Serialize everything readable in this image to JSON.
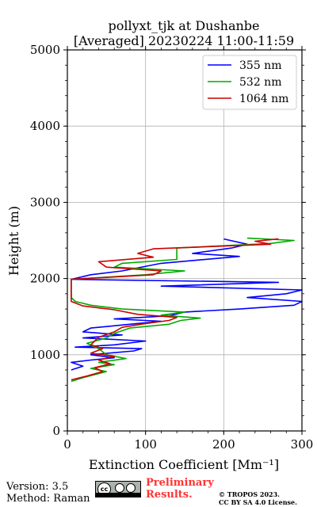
{
  "chart_data": {
    "type": "line",
    "title": "pollyxt_tjk at Dushanbe",
    "subtitle": "[Averaged] 20230224 11:00-11:59",
    "xlabel": "Extinction Coefficient [Mm⁻¹]",
    "ylabel": "Height (m)",
    "xlim": [
      0,
      300
    ],
    "ylim": [
      0,
      5000
    ],
    "xticks": [
      "0",
      "100",
      "200",
      "300"
    ],
    "yticks": [
      "0",
      "1000",
      "2000",
      "3000",
      "4000",
      "5000"
    ],
    "grid": true,
    "legend_position": "top-right",
    "series": [
      {
        "name": "355 nm",
        "color": "#0000ff",
        "points": [
          [
            5,
            800
          ],
          [
            20,
            850
          ],
          [
            5,
            900
          ],
          [
            30,
            930
          ],
          [
            60,
            960
          ],
          [
            30,
            1000
          ],
          [
            85,
            1050
          ],
          [
            95,
            1080
          ],
          [
            10,
            1100
          ],
          [
            60,
            1130
          ],
          [
            100,
            1180
          ],
          [
            20,
            1220
          ],
          [
            70,
            1260
          ],
          [
            20,
            1300
          ],
          [
            30,
            1350
          ],
          [
            80,
            1400
          ],
          [
            120,
            1440
          ],
          [
            60,
            1470
          ],
          [
            130,
            1510
          ],
          [
            150,
            1560
          ],
          [
            220,
            1600
          ],
          [
            290,
            1650
          ],
          [
            300,
            1700
          ],
          [
            230,
            1750
          ],
          [
            280,
            1800
          ],
          [
            300,
            1850
          ],
          [
            120,
            1900
          ],
          [
            270,
            1950
          ],
          [
            5,
            1990
          ],
          [
            30,
            2050
          ],
          [
            70,
            2100
          ],
          [
            120,
            2200
          ],
          [
            220,
            2290
          ],
          [
            160,
            2330
          ],
          [
            210,
            2400
          ],
          [
            230,
            2450
          ],
          [
            200,
            2520
          ]
        ]
      },
      {
        "name": "532 nm",
        "color": "#00aa00",
        "points": [
          [
            5,
            650
          ],
          [
            20,
            700
          ],
          [
            50,
            780
          ],
          [
            30,
            820
          ],
          [
            60,
            870
          ],
          [
            40,
            900
          ],
          [
            75,
            950
          ],
          [
            50,
            1000
          ],
          [
            40,
            1080
          ],
          [
            25,
            1150
          ],
          [
            50,
            1220
          ],
          [
            60,
            1280
          ],
          [
            80,
            1350
          ],
          [
            130,
            1400
          ],
          [
            145,
            1450
          ],
          [
            170,
            1480
          ],
          [
            120,
            1520
          ],
          [
            150,
            1560
          ],
          [
            70,
            1600
          ],
          [
            30,
            1650
          ],
          [
            10,
            1700
          ],
          [
            5,
            1750
          ],
          [
            5,
            1990
          ],
          [
            100,
            2050
          ],
          [
            150,
            2100
          ],
          [
            60,
            2150
          ],
          [
            70,
            2200
          ],
          [
            140,
            2250
          ],
          [
            140,
            2320
          ],
          [
            140,
            2400
          ],
          [
            260,
            2460
          ],
          [
            290,
            2500
          ],
          [
            230,
            2530
          ]
        ]
      },
      {
        "name": "1064 nm",
        "color": "#cc0000",
        "points": [
          [
            5,
            670
          ],
          [
            25,
            720
          ],
          [
            45,
            780
          ],
          [
            35,
            830
          ],
          [
            55,
            880
          ],
          [
            40,
            930
          ],
          [
            60,
            980
          ],
          [
            30,
            1020
          ],
          [
            45,
            1080
          ],
          [
            30,
            1130
          ],
          [
            35,
            1180
          ],
          [
            40,
            1230
          ],
          [
            60,
            1300
          ],
          [
            70,
            1360
          ],
          [
            100,
            1410
          ],
          [
            130,
            1450
          ],
          [
            140,
            1490
          ],
          [
            90,
            1530
          ],
          [
            60,
            1590
          ],
          [
            20,
            1640
          ],
          [
            5,
            1700
          ],
          [
            5,
            1990
          ],
          [
            110,
            2050
          ],
          [
            120,
            2100
          ],
          [
            50,
            2150
          ],
          [
            40,
            2220
          ],
          [
            110,
            2280
          ],
          [
            90,
            2330
          ],
          [
            110,
            2390
          ],
          [
            260,
            2450
          ],
          [
            240,
            2490
          ],
          [
            270,
            2520
          ]
        ]
      }
    ]
  },
  "footer": {
    "version": "Version: 3.5",
    "method": "Method: Raman",
    "cc_badge_text": "cc",
    "preliminary_line1": "Preliminary",
    "preliminary_line2": "Results.",
    "copyright_line1": "© TROPOS 2023.",
    "copyright_line2": "CC BY SA 4.0 License."
  }
}
